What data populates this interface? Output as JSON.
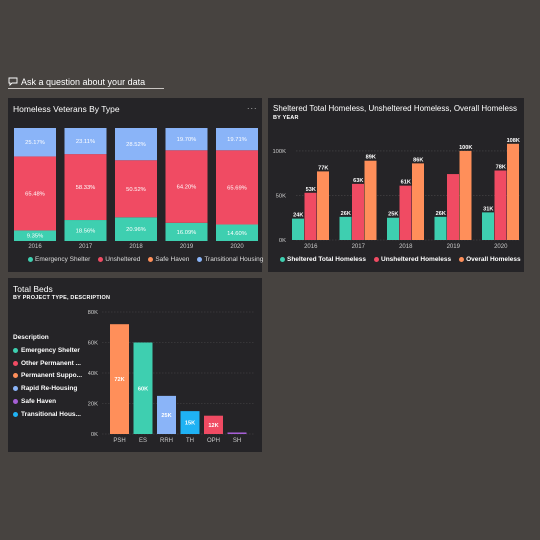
{
  "qa": {
    "label": "Ask a question about your data"
  },
  "colors": {
    "teal": "#3ecfb0",
    "red": "#f04b63",
    "orange": "#ff8f5a",
    "blue": "#8ab4f8",
    "purple": "#a65fd6",
    "cyan": "#1fb2f4",
    "panel": "#252427",
    "background": "#474340"
  },
  "cards": {
    "veterans": {
      "title": "Homeless Veterans By Type",
      "more": "..."
    },
    "sheltered": {
      "title": "Sheltered Total Homeless, Unsheltered Homeless, Overall Homeless",
      "subtitle": "BY YEAR"
    },
    "beds": {
      "title": "Total Beds",
      "subtitle": "BY PROJECT TYPE, DESCRIPTION"
    }
  },
  "legend1": [
    "Emergency Shelter",
    "Unsheltered",
    "Safe Haven",
    "Transitional Housing"
  ],
  "legend2": [
    "Sheltered Total Homeless",
    "Unsheltered Homeless",
    "Overall Homeless"
  ],
  "legend3": {
    "header": "Description",
    "items": [
      "Emergency Shelter",
      "Other Permanent ...",
      "Permanent Suppo...",
      "Rapid Re-Housing",
      "Safe Haven",
      "Transitional Hous..."
    ]
  },
  "chart_data": [
    {
      "type": "bar",
      "stacking": "100%",
      "title": "Homeless Veterans By Type",
      "categories": [
        "2016",
        "2017",
        "2018",
        "2019",
        "2020"
      ],
      "series": [
        {
          "name": "Emergency Shelter",
          "values": [
            9.35,
            18.56,
            20.96,
            16.09,
            14.6
          ],
          "labels": [
            "9.35%",
            "18.56%",
            "20.96%",
            "16.09%",
            "14.60%"
          ]
        },
        {
          "name": "Unsheltered",
          "values": [
            65.48,
            58.33,
            50.52,
            64.2,
            65.69
          ],
          "labels": [
            "65.48%",
            "58.33%",
            "50.52%",
            "64.20%",
            "65.69%"
          ]
        },
        {
          "name": "Safe Haven",
          "values": [
            0.0,
            0.0,
            0.0,
            0.0,
            0.0
          ],
          "labels": [
            "",
            "",
            "",
            "",
            ""
          ]
        },
        {
          "name": "Transitional Housing",
          "values": [
            25.17,
            23.11,
            28.52,
            19.7,
            19.71
          ],
          "labels": [
            "25.17%",
            "23.11%",
            "28.52%",
            "19.70%",
            "19.71%"
          ]
        }
      ],
      "legend": "bottom"
    },
    {
      "type": "bar",
      "title": "Sheltered Total Homeless, Unsheltered Homeless, Overall Homeless",
      "subtitle": "BY YEAR",
      "categories": [
        "2016",
        "2017",
        "2018",
        "2019",
        "2020"
      ],
      "series": [
        {
          "name": "Sheltered Total Homeless",
          "values": [
            24,
            26,
            25,
            26,
            31
          ],
          "labels": [
            "24K",
            "26K",
            "25K",
            "26K",
            "31K"
          ]
        },
        {
          "name": "Unsheltered Homeless",
          "values": [
            53,
            63,
            61,
            74,
            78
          ],
          "labels": [
            "53K",
            "63K",
            "61K",
            "",
            "78K"
          ]
        },
        {
          "name": "Overall Homeless",
          "values": [
            77,
            89,
            86,
            100,
            108
          ],
          "labels": [
            "77K",
            "89K",
            "86K",
            "100K",
            "108K"
          ]
        }
      ],
      "ylim": [
        0,
        110
      ],
      "yticks": [
        0,
        50,
        100
      ],
      "ytick_labels": [
        "0K",
        "50K",
        "100K"
      ],
      "grid": true,
      "legend": "bottom"
    },
    {
      "type": "bar",
      "title": "Total Beds",
      "subtitle": "BY PROJECT TYPE, DESCRIPTION",
      "categories": [
        "PSH",
        "ES",
        "RRH",
        "TH",
        "OPH",
        "SH"
      ],
      "values": [
        72,
        60,
        25,
        15,
        12,
        1
      ],
      "labels": [
        "72K",
        "60K",
        "25K",
        "15K",
        "12K",
        ""
      ],
      "series_names": [
        "Permanent Suppo...",
        "Emergency Shelter",
        "Rapid Re-Housing",
        "Transitional Hous...",
        "Other Permanent ...",
        "Safe Haven"
      ],
      "ylim": [
        0,
        80
      ],
      "yticks": [
        0,
        20,
        40,
        60,
        80
      ],
      "ytick_labels": [
        "0K",
        "20K",
        "40K",
        "60K",
        "80K"
      ],
      "grid": true,
      "legend": "left"
    }
  ]
}
